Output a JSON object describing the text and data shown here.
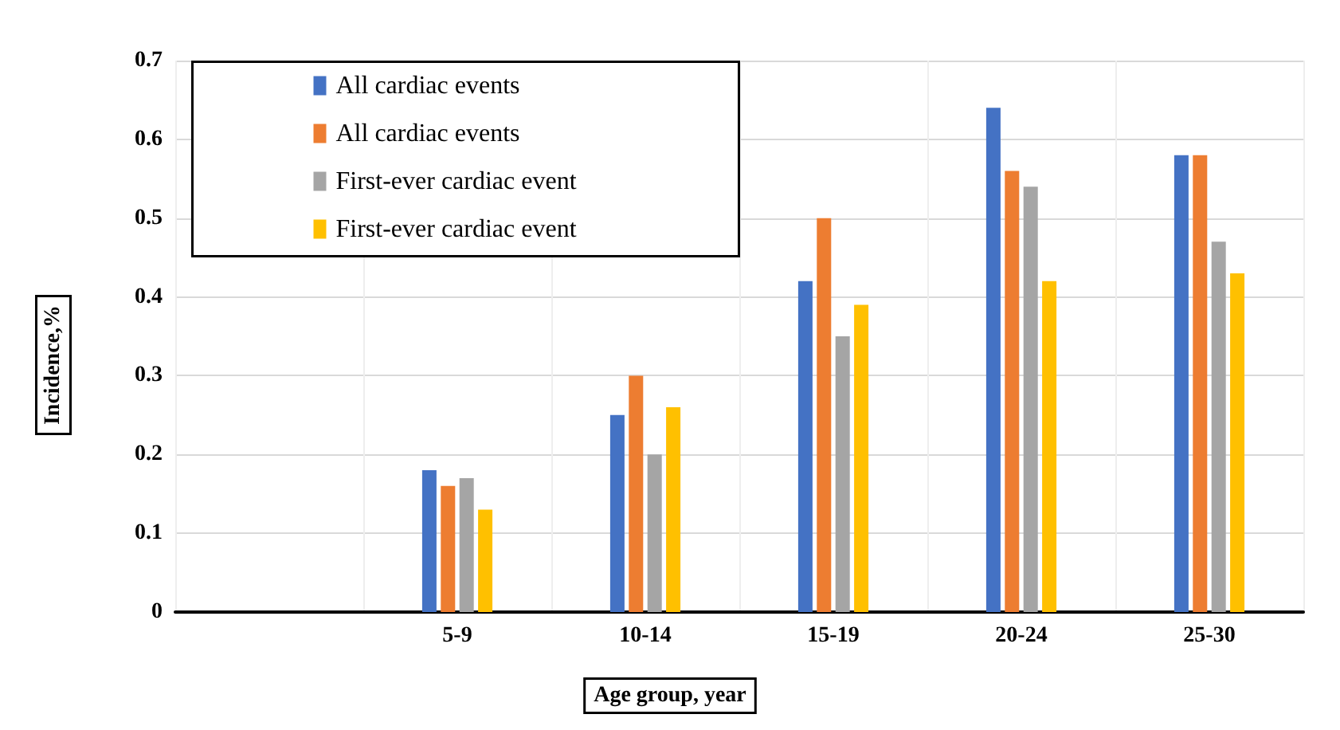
{
  "chart_data": {
    "type": "bar",
    "xlabel": "Age group, year",
    "ylabel": "Incidence,%",
    "categories": [
      null,
      "5-9",
      "10-14",
      "15-19",
      "20-24",
      "25-30"
    ],
    "series": [
      {
        "name": "All cardiac events",
        "color": "#4472c4",
        "values": [
          null,
          0.18,
          0.25,
          0.42,
          0.64,
          0.58
        ]
      },
      {
        "name": "All cardiac events",
        "color": "#ed7d31",
        "values": [
          null,
          0.16,
          0.3,
          0.5,
          0.56,
          0.58
        ]
      },
      {
        "name": "First-ever cardiac event",
        "color": "#a5a5a5",
        "values": [
          null,
          0.17,
          0.2,
          0.35,
          0.54,
          0.47
        ]
      },
      {
        "name": "First-ever cardiac event",
        "color": "#ffc000",
        "values": [
          null,
          0.13,
          0.26,
          0.39,
          0.42,
          0.43
        ]
      }
    ],
    "ylim": [
      0,
      0.7
    ],
    "yticks": [
      0,
      0.1,
      0.2,
      0.3,
      0.4,
      0.5,
      0.6,
      0.7
    ],
    "grid": true,
    "legend": "top left"
  }
}
